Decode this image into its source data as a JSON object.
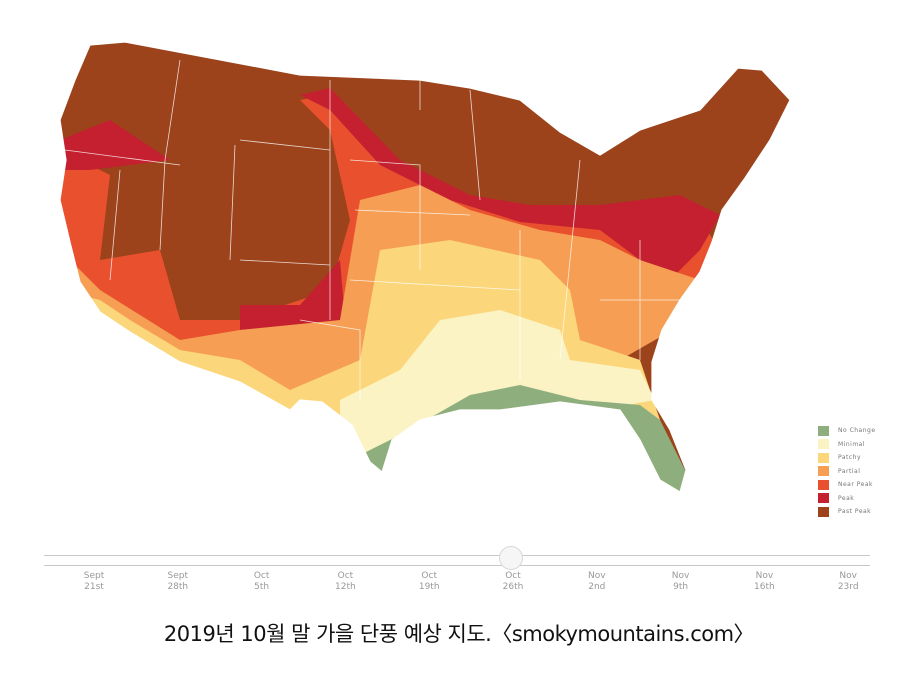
{
  "map": {
    "colors": {
      "no_change": "#8fae7e",
      "minimal": "#fbf3c4",
      "patchy": "#fbd67a",
      "partial": "#f59e54",
      "near_peak": "#e9502d",
      "peak": "#c4202f",
      "past_peak": "#9c431c"
    }
  },
  "legend": {
    "items": [
      {
        "label": "No Change",
        "color": "#8fae7e"
      },
      {
        "label": "Minimal",
        "color": "#fbf3c4"
      },
      {
        "label": "Patchy",
        "color": "#fbd67a"
      },
      {
        "label": "Partial",
        "color": "#f59e54"
      },
      {
        "label": "Near Peak",
        "color": "#e9502d"
      },
      {
        "label": "Peak",
        "color": "#c4202f"
      },
      {
        "label": "Past Peak",
        "color": "#9c431c"
      }
    ]
  },
  "timeline": {
    "selected": "Oct 26th",
    "ticks": [
      {
        "m": "Sept",
        "d": "21st"
      },
      {
        "m": "Sept",
        "d": "28th"
      },
      {
        "m": "Oct",
        "d": "5th"
      },
      {
        "m": "Oct",
        "d": "12th"
      },
      {
        "m": "Oct",
        "d": "19th"
      },
      {
        "m": "Oct",
        "d": "26th"
      },
      {
        "m": "Nov",
        "d": "2nd"
      },
      {
        "m": "Nov",
        "d": "9th"
      },
      {
        "m": "Nov",
        "d": "16th"
      },
      {
        "m": "Nov",
        "d": "23rd"
      }
    ]
  },
  "caption": "2019년 10월 말 가을 단풍 예상 지도.〈smokymountains.com〉"
}
